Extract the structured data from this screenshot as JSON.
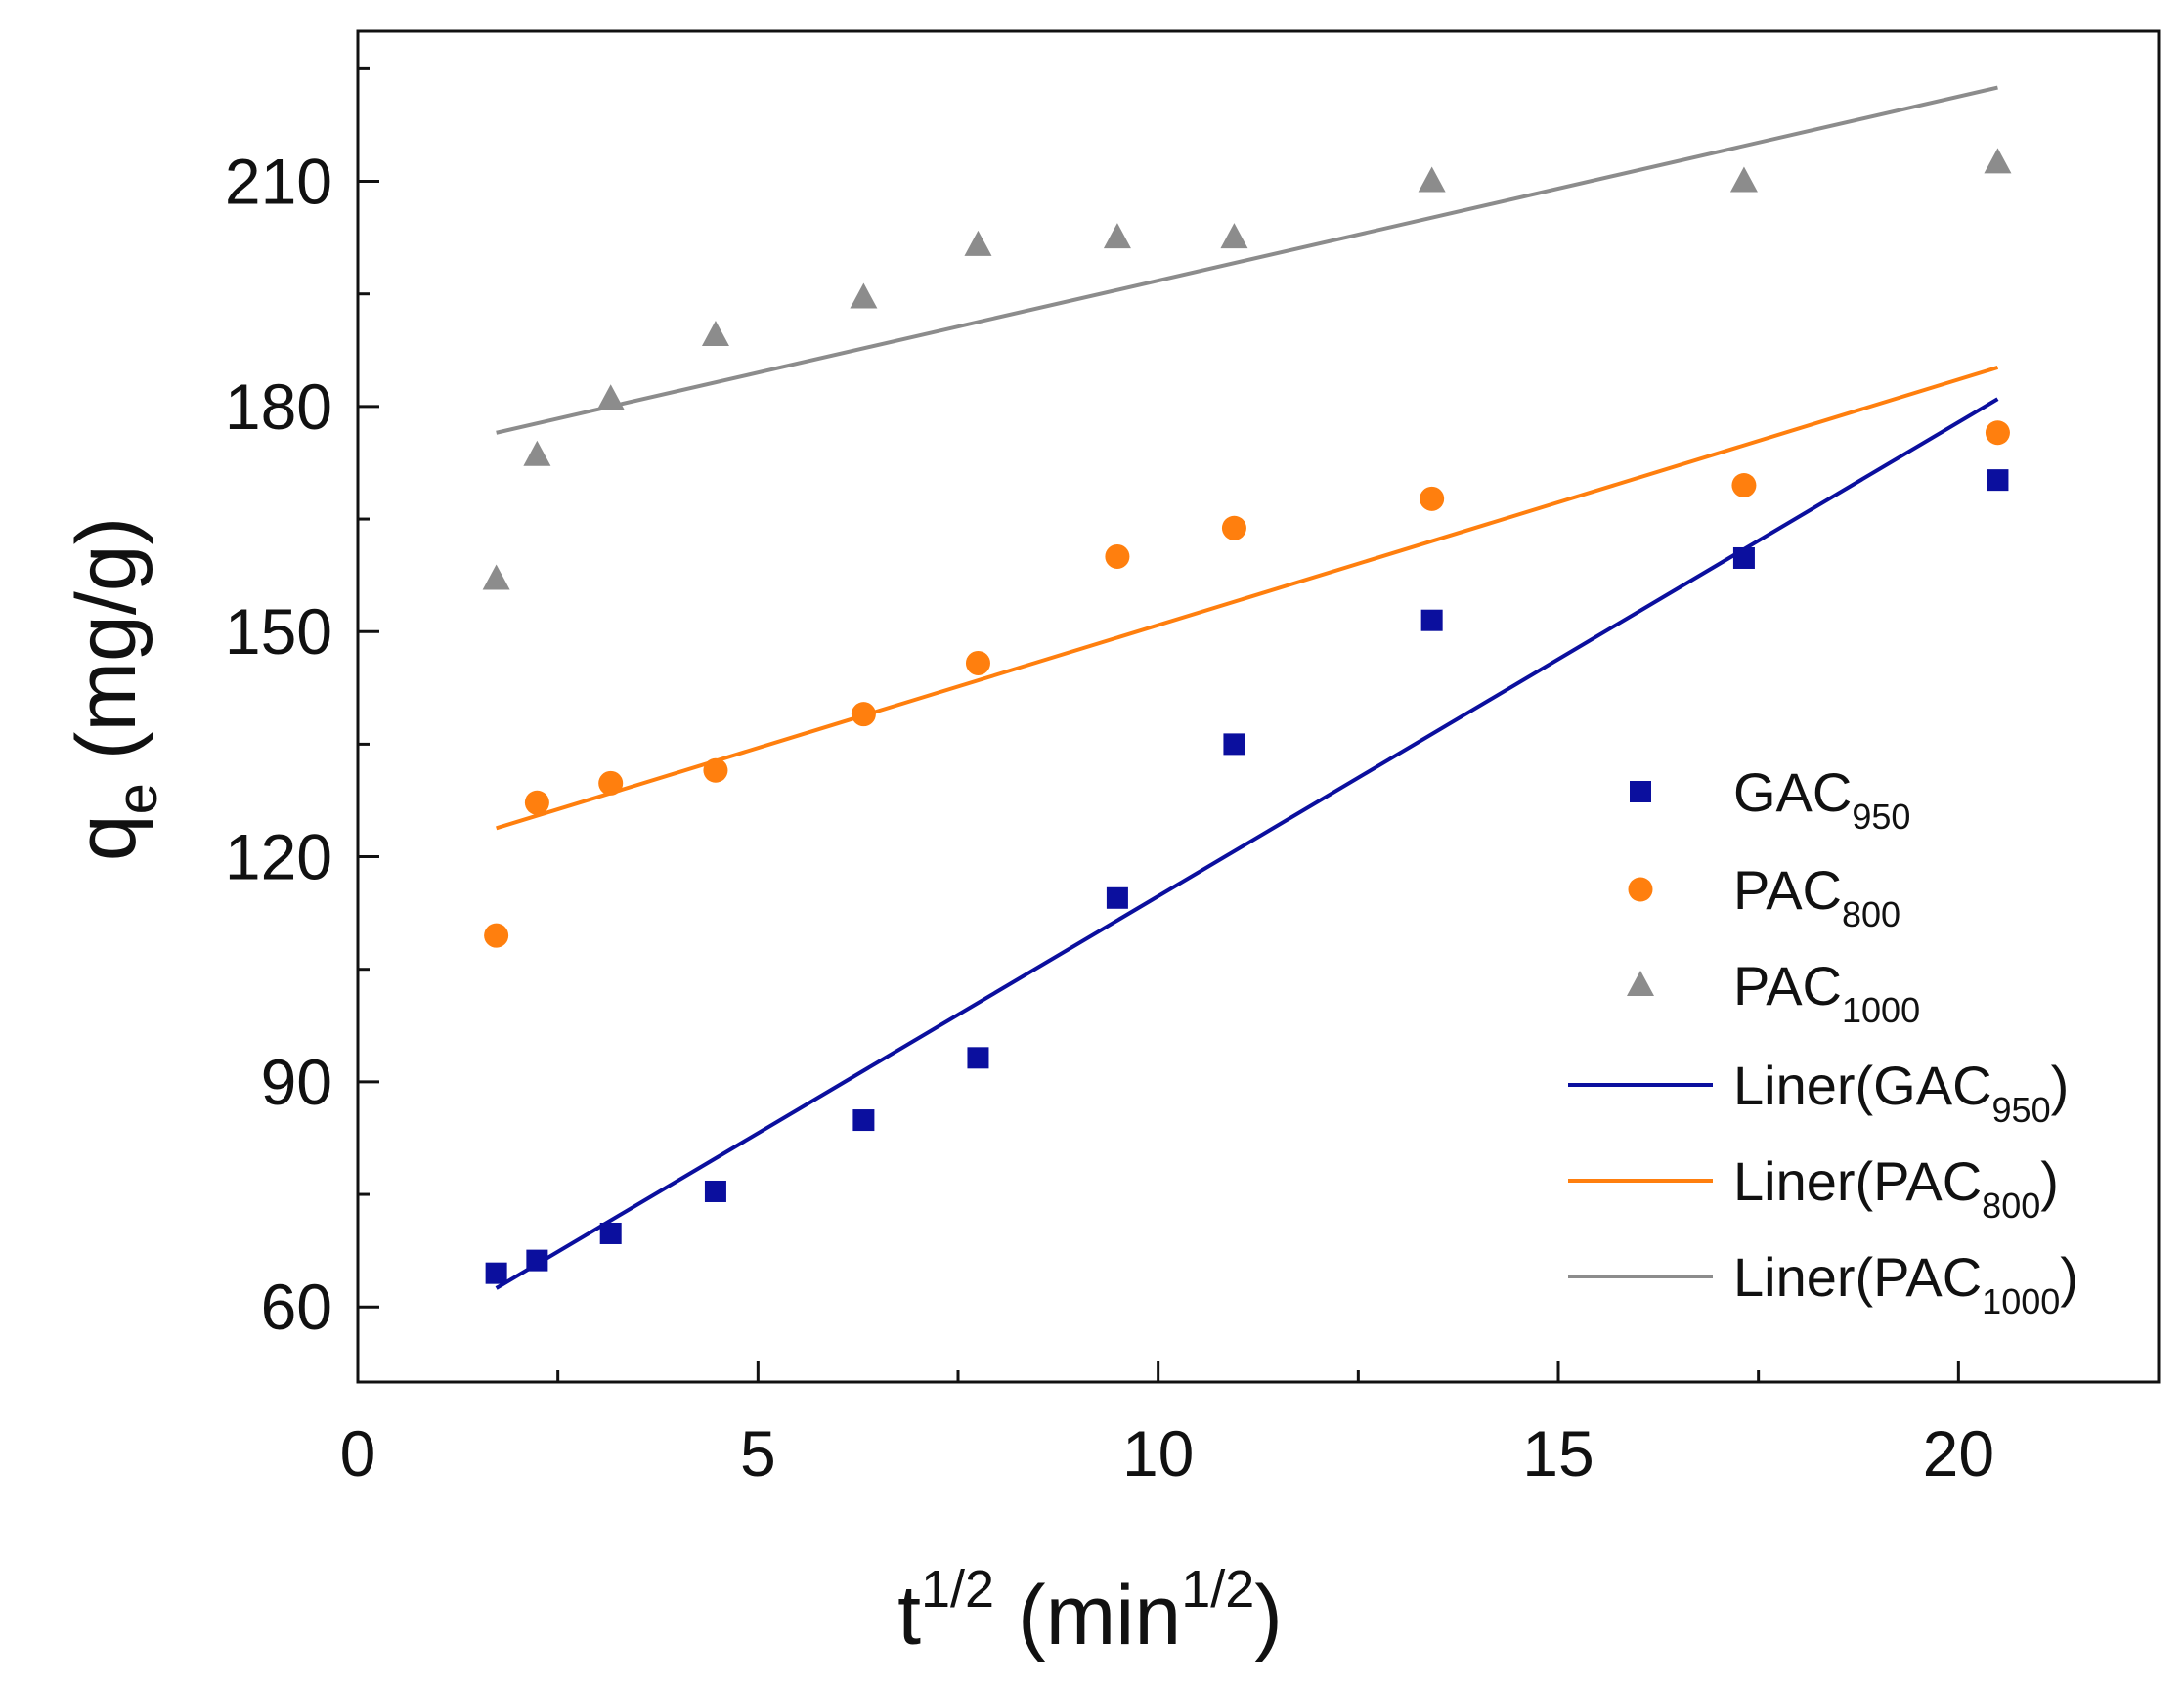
{
  "chart_data": {
    "type": "scatter",
    "xlabel": "t",
    "xlabel_sup": "1/2",
    "xlabel_unit_open": " (min",
    "xlabel_unit_sup": "1/2",
    "xlabel_unit_close": ")",
    "ylabel": "q",
    "ylabel_sub": "e",
    "ylabel_unit": " (mg/g)",
    "xlim": [
      0,
      22.5
    ],
    "ylim": [
      50,
      230
    ],
    "xticks": [
      0,
      5,
      10,
      15,
      20
    ],
    "yticks": [
      60,
      90,
      120,
      150,
      180,
      210
    ],
    "grid": false,
    "legend_position": "bottom-right",
    "series": [
      {
        "name": "GAC",
        "name_sub": "950",
        "marker": "square",
        "color": "#0b0f9e",
        "x": [
          1.73,
          2.24,
          3.16,
          4.47,
          6.32,
          7.75,
          9.49,
          10.95,
          13.42,
          17.32,
          20.49
        ],
        "y": [
          64.5,
          66.2,
          69.8,
          75.4,
          84.9,
          93.2,
          114.5,
          135.0,
          151.5,
          159.8,
          170.2
        ]
      },
      {
        "name": "PAC",
        "name_sub": "800",
        "marker": "circle",
        "color": "#ff7f0e",
        "x": [
          1.73,
          2.24,
          3.16,
          4.47,
          6.32,
          7.75,
          9.49,
          10.95,
          13.42,
          17.32,
          20.49
        ],
        "y": [
          109.5,
          127.2,
          129.8,
          131.5,
          139.0,
          145.8,
          160.0,
          163.8,
          167.7,
          169.5,
          176.5
        ]
      },
      {
        "name": "PAC",
        "name_sub": "1000",
        "marker": "triangle",
        "color": "#8c8c8c",
        "x": [
          1.73,
          2.24,
          3.16,
          4.47,
          6.32,
          7.75,
          9.49,
          10.95,
          13.42,
          17.32,
          20.49
        ],
        "y": [
          157.0,
          173.5,
          181.0,
          189.5,
          194.5,
          201.5,
          202.5,
          202.5,
          210.0,
          210.0,
          212.5
        ]
      }
    ],
    "fits": [
      {
        "name": "Liner(GAC",
        "name_sub": "950",
        "name_close": ")",
        "color": "#0b0f9e",
        "x": [
          1.73,
          20.49
        ],
        "y": [
          62.5,
          181.0
        ]
      },
      {
        "name": "Liner(PAC",
        "name_sub": "800",
        "name_close": ")",
        "color": "#ff7f0e",
        "x": [
          1.73,
          20.49
        ],
        "y": [
          123.8,
          185.2
        ]
      },
      {
        "name": "Liner(PAC",
        "name_sub": "1000",
        "name_close": ")",
        "color": "#8c8c8c",
        "x": [
          1.73,
          20.49
        ],
        "y": [
          176.5,
          222.5
        ]
      }
    ]
  }
}
